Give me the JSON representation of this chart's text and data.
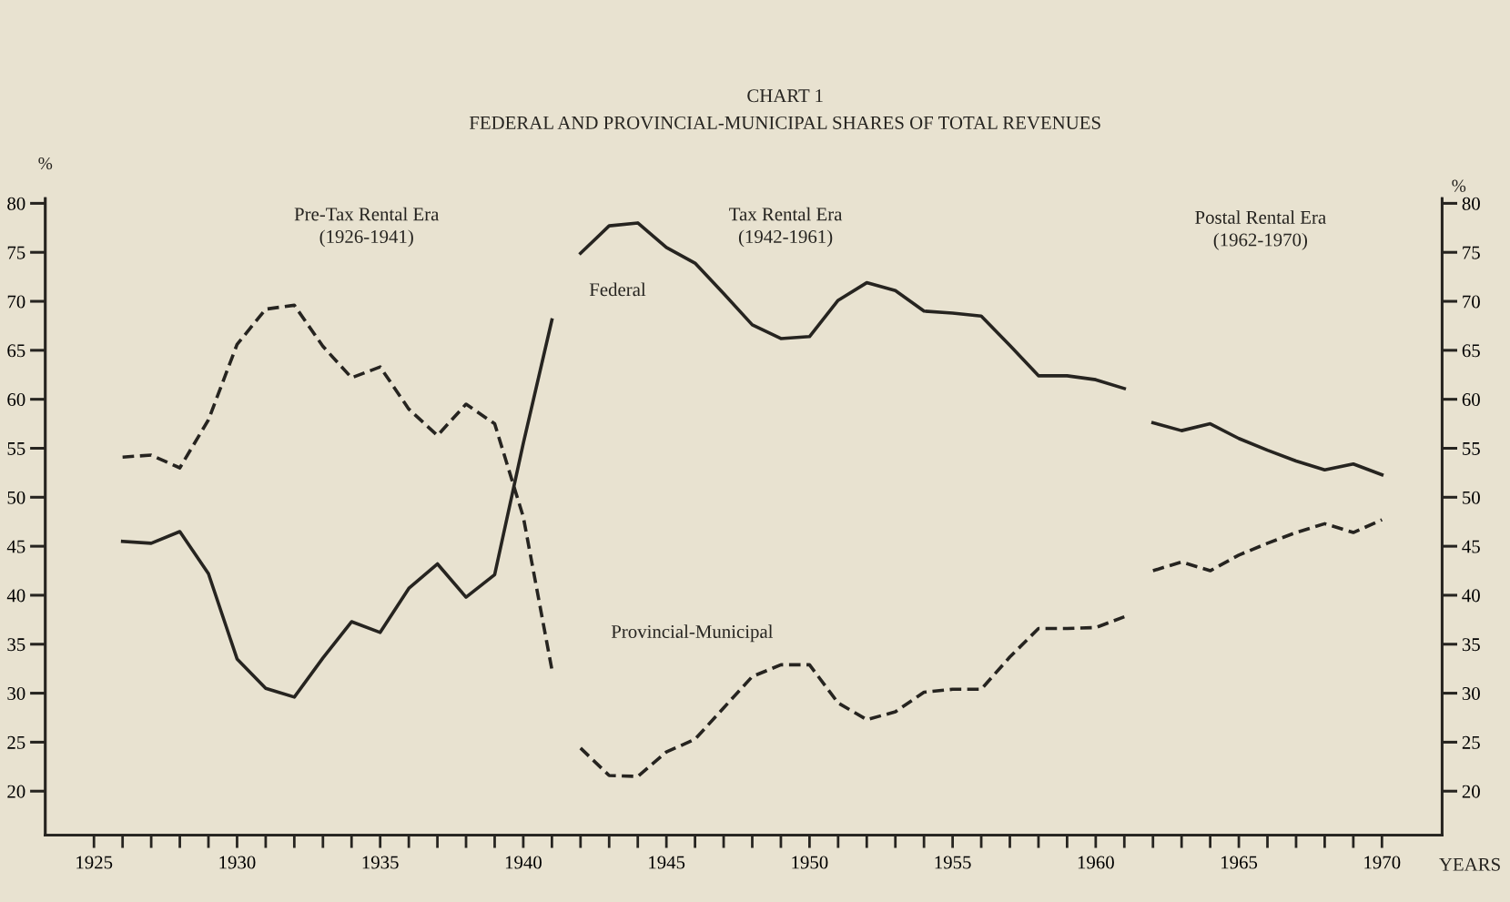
{
  "chart_data": {
    "type": "line",
    "title": "CHART 1",
    "subtitle": "FEDERAL AND PROVINCIAL-MUNICIPAL SHARES OF TOTAL REVENUES",
    "xlabel": "YEARS",
    "ylabel": "%",
    "y2label": "%",
    "annotations": [
      "Pre-Tax Rental Era\n(1926-1941)",
      "Tax Rental Era\n(1942-1961)",
      "Postal Rental Era\n(1962-1970)"
    ],
    "series": [
      {
        "color": "#262420",
        "line_style": "solid",
        "x": [
          1926,
          1927,
          1928,
          1929,
          1930,
          1931,
          1932,
          1933,
          1934,
          1935,
          1936,
          1937,
          1938,
          1939,
          1940,
          1941
        ],
        "values": [
          45.5,
          45.3,
          46.5,
          42.2,
          33.5,
          30.5,
          29.6,
          33.6,
          37.3,
          36.2,
          40.7,
          43.2,
          39.8,
          42.1,
          55.5,
          68.1
        ]
      },
      {
        "name": "Federal",
        "color": "#262420",
        "line_style": "solid",
        "x": [
          1942,
          1943,
          1944,
          1945,
          1946,
          1947,
          1948,
          1949,
          1950,
          1951,
          1952,
          1953,
          1954,
          1955,
          1956,
          1957,
          1958,
          1959,
          1960,
          1961
        ],
        "values": [
          74.9,
          77.7,
          78.0,
          75.5,
          73.9,
          70.8,
          67.6,
          66.2,
          66.4,
          70.1,
          71.9,
          71.1,
          69.0,
          68.8,
          68.5,
          65.5,
          62.4,
          62.4,
          62.0,
          61.1
        ]
      },
      {
        "color": "#262420",
        "line_style": "solid",
        "x": [
          1962,
          1963,
          1964,
          1965,
          1966,
          1967,
          1968,
          1969,
          1970
        ],
        "values": [
          57.6,
          56.8,
          57.5,
          56.0,
          54.8,
          53.7,
          52.8,
          53.4,
          52.3
        ]
      },
      {
        "color": "#262420",
        "line_style": "dashed",
        "x": [
          1926,
          1927,
          1928,
          1929,
          1930,
          1931,
          1932,
          1933,
          1934,
          1935,
          1936,
          1937,
          1938,
          1939,
          1940,
          1941
        ],
        "values": [
          54.1,
          54.3,
          53.0,
          57.9,
          65.6,
          69.2,
          69.6,
          65.4,
          62.2,
          63.3,
          59.0,
          56.3,
          59.5,
          57.5,
          48.0,
          32.4
        ]
      },
      {
        "name": "Provincial-Municipal",
        "color": "#262420",
        "line_style": "dashed",
        "x": [
          1942,
          1943,
          1944,
          1945,
          1946,
          1947,
          1948,
          1949,
          1950,
          1951,
          1952,
          1953,
          1954,
          1955,
          1956,
          1957,
          1958,
          1959,
          1960,
          1961
        ],
        "values": [
          24.4,
          21.6,
          21.5,
          24.0,
          25.3,
          28.5,
          31.7,
          32.9,
          32.9,
          29.0,
          27.3,
          28.1,
          30.1,
          30.4,
          30.4,
          33.7,
          36.6,
          36.6,
          36.7,
          37.8
        ]
      },
      {
        "color": "#262420",
        "line_style": "dashed",
        "x": [
          1962,
          1963,
          1964,
          1965,
          1966,
          1967,
          1968,
          1969,
          1970
        ],
        "values": [
          42.5,
          43.4,
          42.5,
          44.1,
          45.3,
          46.4,
          47.3,
          46.4,
          47.7
        ]
      }
    ],
    "xlim": [
      1923.3,
      1972.1
    ],
    "xticks": [
      1925,
      {
        "value": 1926,
        "label": null
      },
      {
        "value": 1927,
        "label": null
      },
      {
        "value": 1928,
        "label": null
      },
      {
        "value": 1929,
        "label": null
      },
      1930,
      {
        "value": 1931,
        "label": null
      },
      {
        "value": 1932,
        "label": null
      },
      {
        "value": 1933,
        "label": null
      },
      {
        "value": 1934,
        "label": null
      },
      1935,
      {
        "value": 1936,
        "label": null
      },
      {
        "value": 1937,
        "label": null
      },
      {
        "value": 1938,
        "label": null
      },
      {
        "value": 1939,
        "label": null
      },
      1940,
      {
        "value": 1941,
        "label": null
      },
      {
        "value": 1942,
        "label": null
      },
      {
        "value": 1943,
        "label": null
      },
      {
        "value": 1944,
        "label": null
      },
      1945,
      {
        "value": 1946,
        "label": null
      },
      {
        "value": 1947,
        "label": null
      },
      {
        "value": 1948,
        "label": null
      },
      {
        "value": 1949,
        "label": null
      },
      1950,
      {
        "value": 1951,
        "label": null
      },
      {
        "value": 1952,
        "label": null
      },
      {
        "value": 1953,
        "label": null
      },
      {
        "value": 1954,
        "label": null
      },
      1955,
      {
        "value": 1956,
        "label": null
      },
      {
        "value": 1957,
        "label": null
      },
      {
        "value": 1958,
        "label": null
      },
      {
        "value": 1959,
        "label": null
      },
      1960,
      {
        "value": 1961,
        "label": null
      },
      {
        "value": 1962,
        "label": null
      },
      {
        "value": 1963,
        "label": null
      },
      {
        "value": 1964,
        "label": null
      },
      1965,
      {
        "value": 1966,
        "label": null
      },
      {
        "value": 1967,
        "label": null
      },
      {
        "value": 1968,
        "label": null
      },
      {
        "value": 1969,
        "label": null
      },
      1970
    ],
    "ylim": [
      15.5,
      80.5
    ],
    "yticks": [
      20,
      25,
      30,
      35,
      40,
      45,
      50,
      55,
      60,
      65,
      70,
      75,
      80
    ],
    "y2lim": [
      15.5,
      80.5
    ],
    "y2ticks": [
      20,
      25,
      30,
      35,
      40,
      45,
      50,
      55,
      60,
      65,
      70,
      75,
      80
    ],
    "grid": false,
    "legend": false,
    "marker": "none"
  }
}
